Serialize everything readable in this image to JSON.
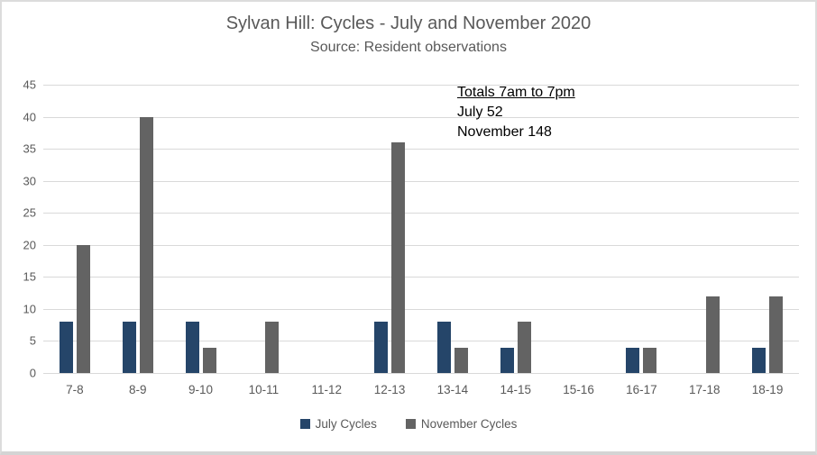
{
  "title": "Sylvan Hill: Cycles - July and November 2020",
  "subtitle": "Source: Resident observations",
  "annotation": {
    "heading": "Totals 7am to 7pm",
    "lines": [
      "July 52",
      "November 148"
    ]
  },
  "legend": {
    "items": [
      {
        "label": "July Cycles",
        "color": "#254569"
      },
      {
        "label": "November Cycles",
        "color": "#636363"
      }
    ]
  },
  "colors": {
    "july_bar": "#254569",
    "november_bar": "#636363",
    "axis_text": "#595959",
    "title_text": "#595959",
    "gridline": "#d9d9d9",
    "annotation_text": "#000000"
  },
  "chart_data": {
    "type": "bar",
    "categories": [
      "7-8",
      "8-9",
      "9-10",
      "10-11",
      "11-12",
      "12-13",
      "13-14",
      "14-15",
      "15-16",
      "16-17",
      "17-18",
      "18-19"
    ],
    "series": [
      {
        "name": "July Cycles",
        "color": "#254569",
        "values": [
          8,
          8,
          8,
          0,
          0,
          8,
          8,
          4,
          0,
          4,
          0,
          4
        ]
      },
      {
        "name": "November Cycles",
        "color": "#636363",
        "values": [
          20,
          40,
          4,
          8,
          0,
          36,
          4,
          8,
          0,
          4,
          12,
          12
        ]
      }
    ],
    "title": "Sylvan Hill: Cycles - July and November 2020",
    "subtitle": "Source: Resident observations",
    "xlabel": "",
    "ylabel": "",
    "ylim": [
      0,
      45
    ],
    "yticks": [
      45,
      40,
      35,
      30,
      25,
      20,
      15,
      10,
      5,
      0
    ],
    "grid": true,
    "legend_position": "bottom"
  }
}
